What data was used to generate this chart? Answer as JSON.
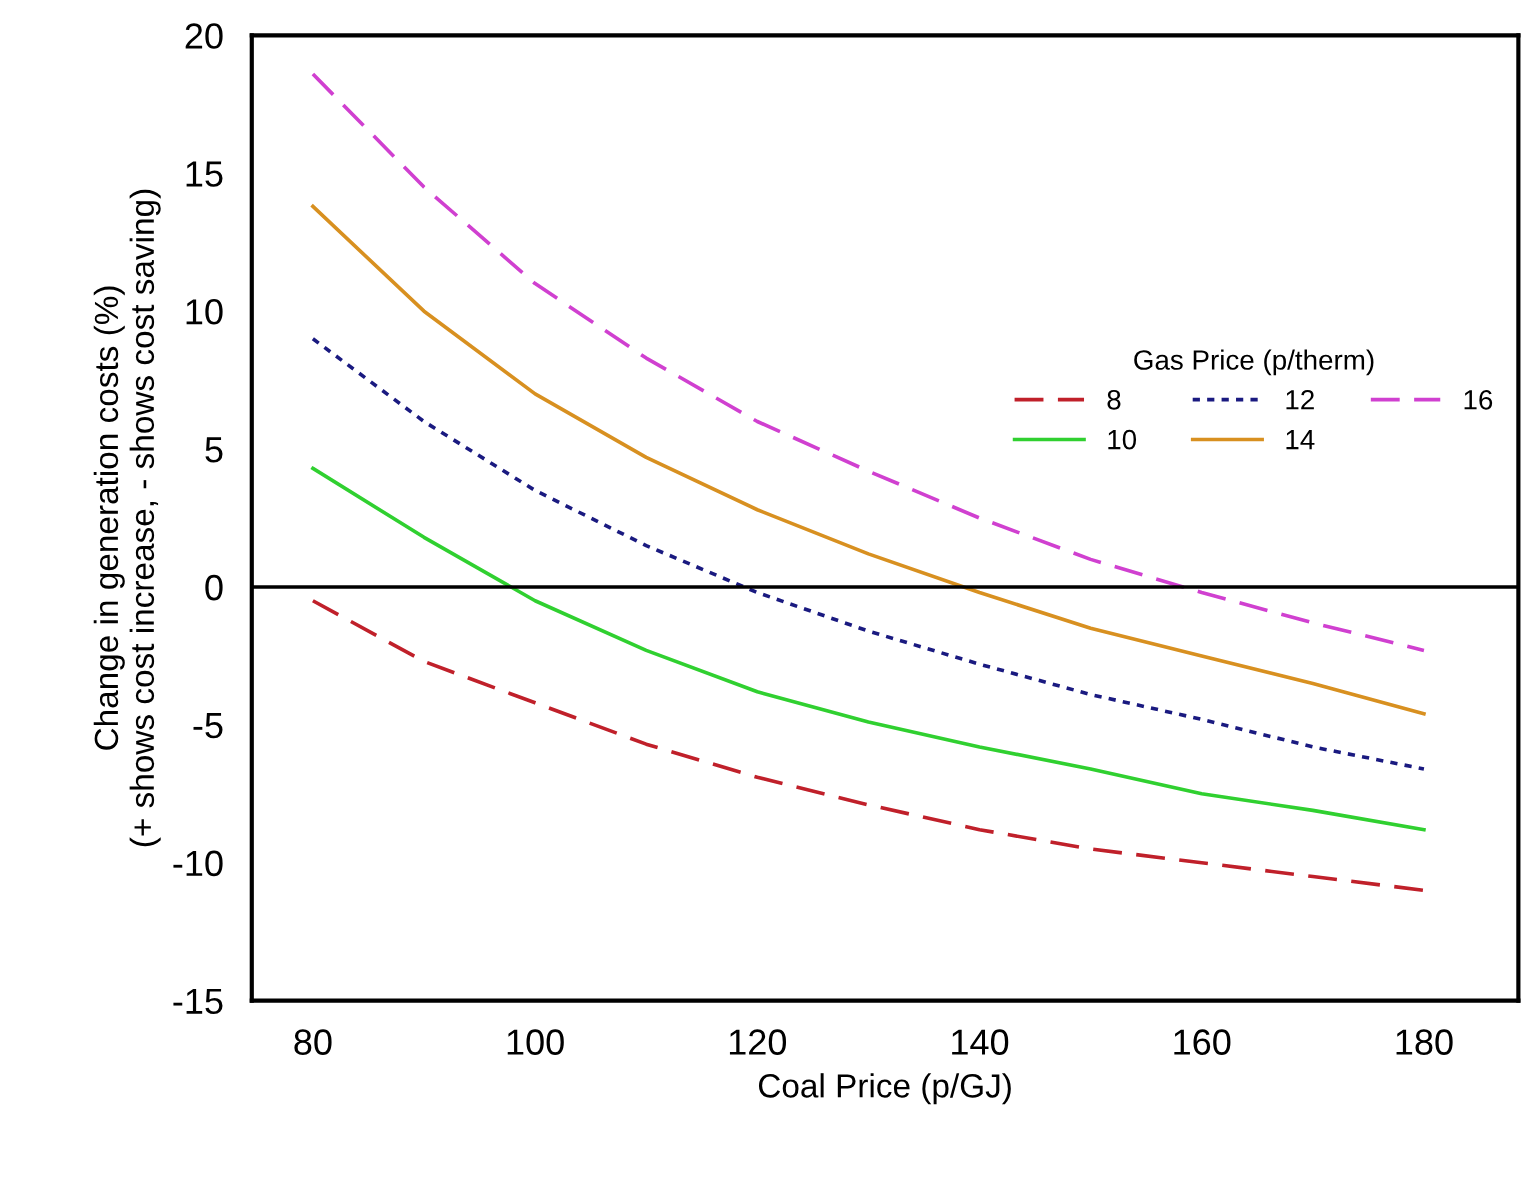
{
  "chart_data": {
    "type": "line",
    "xlabel": "Coal Price (p/GJ)",
    "ylabel": "Change in generation costs (%)\n(+ shows cost increase, - shows cost saving)",
    "legend_title": "Gas Price (p/therm)",
    "legend": "right",
    "grid": false,
    "marker": "none",
    "x": [
      80,
      90,
      100,
      110,
      120,
      130,
      140,
      150,
      160,
      170,
      180
    ],
    "xlim": [
      74.5,
      188.5
    ],
    "xticks": [
      80,
      100,
      120,
      140,
      160,
      180
    ],
    "ylim": [
      -15,
      20
    ],
    "yticks": [
      -15,
      -10,
      -5,
      0,
      5,
      10,
      15,
      20
    ],
    "ref_lines": [
      {
        "axis": "y",
        "value": 0,
        "color": "#000000",
        "line_style": "solid"
      }
    ],
    "series": [
      {
        "name": "8",
        "color": "#c0202a",
        "line_style": "dashed",
        "values": [
          -0.5,
          -2.7,
          -4.2,
          -5.7,
          -6.9,
          -7.9,
          -8.8,
          -9.5,
          -10.0,
          -10.5,
          -11.0
        ]
      },
      {
        "name": "10",
        "color": "#30d030",
        "line_style": "solid",
        "values": [
          4.3,
          1.8,
          -0.5,
          -2.3,
          -3.8,
          -4.9,
          -5.8,
          -6.6,
          -7.5,
          -8.1,
          -8.8
        ]
      },
      {
        "name": "12",
        "color": "#1a1a80",
        "line_style": "dotted",
        "values": [
          9.0,
          6.0,
          3.5,
          1.5,
          -0.2,
          -1.6,
          -2.8,
          -3.9,
          -4.8,
          -5.8,
          -6.6
        ]
      },
      {
        "name": "14",
        "color": "#d89020",
        "line_style": "solid",
        "values": [
          13.8,
          10.0,
          7.0,
          4.7,
          2.8,
          1.2,
          -0.2,
          -1.5,
          -2.5,
          -3.5,
          -4.6
        ]
      },
      {
        "name": "16",
        "color": "#d040d0",
        "line_style": "dashed",
        "values": [
          18.6,
          14.5,
          11.0,
          8.3,
          6.0,
          4.2,
          2.5,
          1.0,
          -0.2,
          -1.3,
          -2.3
        ]
      }
    ]
  }
}
